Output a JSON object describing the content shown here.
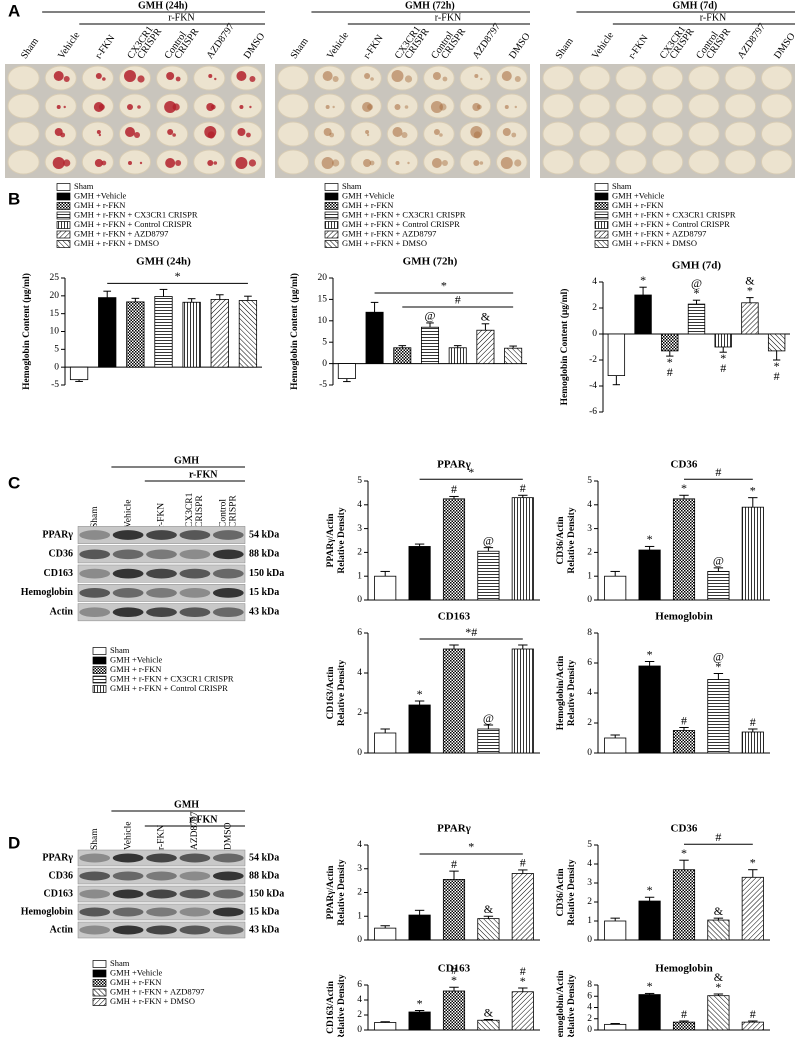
{
  "panel_labels": [
    "A",
    "B",
    "C",
    "D"
  ],
  "panel_a": [
    {
      "title": "GMH (24h)",
      "group": "r-FKN",
      "columns": [
        [
          "Sham"
        ],
        [
          "Vehicle"
        ],
        [
          "r-FKN"
        ],
        [
          "CX3CR1",
          "CRISPR"
        ],
        [
          "Control",
          "CRISPR"
        ],
        [
          "AZD8797"
        ],
        [
          "DMSO"
        ]
      ]
    },
    {
      "title": "GMH (72h)",
      "group": "r-FKN",
      "columns": [
        [
          "Sham"
        ],
        [
          "Vehicle"
        ],
        [
          "r-FKN"
        ],
        [
          "CX3CR1",
          "CRISPR"
        ],
        [
          "Control",
          "CRISPR"
        ],
        [
          "AZD8797"
        ],
        [
          "DMSO"
        ]
      ]
    },
    {
      "title": "GMH (7d)",
      "group": "r-FKN",
      "columns": [
        [
          "Sham"
        ],
        [
          "Vehicle"
        ],
        [
          "r-FKN"
        ],
        [
          "CX3CR1",
          "CRISPR"
        ],
        [
          "Control",
          "CRISPR"
        ],
        [
          "AZD8797"
        ],
        [
          "DMSO"
        ]
      ]
    }
  ],
  "blots": [
    {
      "header": "GMH",
      "group": "r-FKN",
      "columns": [
        [
          "Sham"
        ],
        [
          "Vehicle"
        ],
        [
          "r-FKN"
        ],
        [
          "CX3CR1",
          "CRISPR"
        ],
        [
          "Control",
          "CRISPR"
        ]
      ],
      "rows": [
        {
          "protein": "PPARγ",
          "size": "54 kDa"
        },
        {
          "protein": "CD36",
          "size": "88 kDa"
        },
        {
          "protein": "CD163",
          "size": "150 kDa"
        },
        {
          "protein": "Hemoglobin",
          "size": "15 kDa"
        },
        {
          "protein": "Actin",
          "size": "43 kDa"
        }
      ]
    },
    {
      "header": "GMH",
      "group": "r-FKN",
      "columns": [
        [
          "Sham"
        ],
        [
          "Vehicle"
        ],
        [
          "r-FKN"
        ],
        [
          "AZD8797"
        ],
        [
          "DMSO"
        ]
      ],
      "rows": [
        {
          "protein": "PPARγ",
          "size": "54 kDa"
        },
        {
          "protein": "CD36",
          "size": "88 kDa"
        },
        {
          "protein": "CD163",
          "size": "150 kDa"
        },
        {
          "protein": "Hemoglobin",
          "size": "15 kDa"
        },
        {
          "protein": "Actin",
          "size": "43 kDa"
        }
      ]
    }
  ],
  "legends": [
    {
      "names": [
        "Sham",
        "GMH +Vehicle",
        "GMH + r-FKN",
        "GMH + r-FKN + CX3CR1 CRISPR",
        "GMH + r-FKN + Control CRISPR"
      ],
      "patterns": [
        "none",
        "solid",
        "cross",
        "hlines",
        "vlines"
      ]
    },
    {
      "names": [
        "Sham",
        "GMH +Vehicle",
        "GMH + r-FKN",
        "GMH + r-FKN + AZD8797",
        "GMH + r-FKN + DMSO"
      ],
      "patterns": [
        "none",
        "solid",
        "cross",
        "antidiag",
        "diag"
      ]
    }
  ],
  "chart_data": [
    {
      "type": "bar",
      "title": "GMH (24h)",
      "ylabel": [
        "Hemoglobin Content (μg/ml)"
      ],
      "categories": [
        null,
        null,
        null,
        null,
        null,
        null,
        null
      ],
      "values": [
        -3.5,
        19.5,
        18.3,
        19.8,
        18.2,
        19,
        18.7
      ],
      "errors": [
        0.5,
        1.8,
        1,
        2,
        1,
        1.3,
        1.2
      ],
      "bar_labels": [
        null,
        null,
        null,
        null,
        null,
        null,
        null
      ],
      "brackets": [
        {
          "label": "*",
          "from": 1,
          "to": 6
        }
      ],
      "ylim": [
        -5,
        25
      ],
      "yticks": [
        -5,
        0,
        5,
        10,
        15,
        20,
        25
      ],
      "patterns": [
        "none",
        "solid",
        "cross",
        "hlines",
        "vlines",
        "diag",
        "antidiag"
      ],
      "legend": [
        "Sham",
        "GMH +Vehicle",
        "GMH + r-FKN",
        "GMH + r-FKN + CX3CR1 CRISPR",
        "GMH + r-FKN + Control CRISPR",
        "GMH + r-FKN + AZD8797",
        "GMH + r-FKN + DMSO"
      ]
    },
    {
      "type": "bar",
      "title": "GMH (72h)",
      "ylabel": [
        "Hemoglobin Content (μg/ml)"
      ],
      "categories": [
        null,
        null,
        null,
        null,
        null,
        null,
        null
      ],
      "values": [
        -3.5,
        12,
        3.7,
        8.5,
        3.7,
        7.8,
        3.6
      ],
      "errors": [
        0.7,
        2.3,
        0.5,
        1,
        0.5,
        1.5,
        0.5
      ],
      "bar_labels": [
        null,
        null,
        null,
        [
          "@"
        ],
        null,
        [
          "&"
        ],
        null
      ],
      "brackets": [
        {
          "label": "#",
          "from": 2,
          "to": 6
        },
        {
          "label": "*",
          "from": 1,
          "to": 6
        }
      ],
      "ylim": [
        -5,
        20
      ],
      "yticks": [
        -5,
        0,
        5,
        10,
        15,
        20
      ],
      "patterns": [
        "none",
        "solid",
        "cross",
        "hlines",
        "vlines",
        "diag",
        "antidiag"
      ],
      "legend": [
        "Sham",
        "GMH +Vehicle",
        "GMH + r-FKN",
        "GMH + r-FKN + CX3CR1 CRISPR",
        "GMH + r-FKN + Control CRISPR",
        "GMH + r-FKN + AZD8797",
        "GMH + r-FKN + DMSO"
      ]
    },
    {
      "type": "bar",
      "title": "GMH (7d)",
      "ylabel": [
        "Hemoglobin Content (μg/ml)"
      ],
      "categories": [
        null,
        null,
        null,
        null,
        null,
        null,
        null
      ],
      "values": [
        -3.2,
        3,
        -1.3,
        2.3,
        -1,
        2.4,
        -1.3
      ],
      "errors": [
        0.7,
        0.6,
        0.4,
        0.3,
        0.4,
        0.4,
        0.7
      ],
      "bar_labels": [
        null,
        [
          "*"
        ],
        [
          "*",
          "#"
        ],
        [
          "@",
          "*"
        ],
        [
          "*",
          "#"
        ],
        [
          "&",
          "*"
        ],
        [
          "*",
          "#"
        ]
      ],
      "brackets": [],
      "ylim": [
        -6,
        4
      ],
      "yticks": [
        -6,
        -4,
        -2,
        0,
        2,
        4
      ],
      "patterns": [
        "none",
        "solid",
        "cross",
        "hlines",
        "vlines",
        "diag",
        "antidiag"
      ],
      "legend": [
        "Sham",
        "GMH +Vehicle",
        "GMH + r-FKN",
        "GMH + r-FKN + CX3CR1 CRISPR",
        "GMH + r-FKN + Control CRISPR",
        "GMH + r-FKN + AZD8797",
        "GMH + r-FKN + DMSO"
      ]
    },
    {
      "type": "bar",
      "title": "PPARγ",
      "ylabel": [
        "PPARγ/Actin",
        "Relative Density"
      ],
      "categories": [
        null,
        null,
        null,
        null,
        null
      ],
      "values": [
        1,
        2.25,
        4.25,
        2.05,
        4.3
      ],
      "errors": [
        0.2,
        0.1,
        0.1,
        0.15,
        0.1
      ],
      "bar_labels": [
        null,
        null,
        [
          "#"
        ],
        [
          "@"
        ],
        [
          "#"
        ]
      ],
      "brackets": [
        {
          "label": "*",
          "from": 1,
          "to": 4
        }
      ],
      "ylim": [
        0,
        5
      ],
      "yticks": [
        0,
        1,
        2,
        3,
        4,
        5
      ],
      "patterns": [
        "none",
        "solid",
        "cross",
        "hlines",
        "vlines"
      ]
    },
    {
      "type": "bar",
      "title": "CD36",
      "ylabel": [
        "CD36/Actin",
        "Relative Density"
      ],
      "categories": [
        null,
        null,
        null,
        null,
        null
      ],
      "values": [
        1,
        2.1,
        4.25,
        1.2,
        3.9
      ],
      "errors": [
        0.2,
        0.15,
        0.15,
        0.15,
        0.4
      ],
      "bar_labels": [
        null,
        [
          "*"
        ],
        [
          "*"
        ],
        [
          "@"
        ],
        [
          "*"
        ]
      ],
      "brackets": [
        {
          "label": "#",
          "from": 2,
          "to": 4
        }
      ],
      "ylim": [
        0,
        5
      ],
      "yticks": [
        0,
        1,
        2,
        3,
        4,
        5
      ],
      "patterns": [
        "none",
        "solid",
        "cross",
        "hlines",
        "vlines"
      ]
    },
    {
      "type": "bar",
      "title": "CD163",
      "ylabel": [
        "CD163/Actin",
        "Relative Density"
      ],
      "categories": [
        null,
        null,
        null,
        null,
        null
      ],
      "values": [
        1,
        2.4,
        5.2,
        1.2,
        5.2
      ],
      "errors": [
        0.2,
        0.2,
        0.2,
        0.2,
        0.2
      ],
      "bar_labels": [
        null,
        [
          "*"
        ],
        null,
        [
          "@"
        ],
        null
      ],
      "brackets": [
        {
          "label": "*#",
          "from": 1,
          "to": 4
        }
      ],
      "ylim": [
        0,
        6
      ],
      "yticks": [
        0,
        2,
        4,
        6
      ],
      "patterns": [
        "none",
        "solid",
        "cross",
        "hlines",
        "vlines"
      ]
    },
    {
      "type": "bar",
      "title": "Hemoglobin",
      "ylabel": [
        "Hemoglobin/Actin",
        "Relative Density"
      ],
      "categories": [
        null,
        null,
        null,
        null,
        null
      ],
      "values": [
        1,
        5.8,
        1.5,
        4.9,
        1.4
      ],
      "errors": [
        0.2,
        0.3,
        0.2,
        0.4,
        0.2
      ],
      "bar_labels": [
        null,
        [
          "*"
        ],
        [
          "#"
        ],
        [
          "@",
          "*"
        ],
        [
          "#"
        ]
      ],
      "brackets": [],
      "ylim": [
        0,
        8
      ],
      "yticks": [
        0,
        2,
        4,
        6,
        8
      ],
      "patterns": [
        "none",
        "solid",
        "cross",
        "hlines",
        "vlines"
      ]
    },
    {
      "type": "bar",
      "title": "PPARγ",
      "ylabel": [
        "PPARγ/Actin",
        "Relative Density"
      ],
      "categories": [
        null,
        null,
        null,
        null,
        null
      ],
      "values": [
        0.5,
        1.05,
        2.55,
        0.9,
        2.8
      ],
      "errors": [
        0.1,
        0.2,
        0.35,
        0.1,
        0.15
      ],
      "bar_labels": [
        null,
        null,
        [
          "#"
        ],
        [
          "&"
        ],
        [
          "#"
        ]
      ],
      "brackets": [
        {
          "label": "*",
          "from": 1,
          "to": 4
        }
      ],
      "ylim": [
        0,
        4
      ],
      "yticks": [
        0,
        1,
        2,
        3,
        4
      ],
      "patterns": [
        "none",
        "solid",
        "cross",
        "antidiag",
        "diag"
      ]
    },
    {
      "type": "bar",
      "title": "CD36",
      "ylabel": [
        "CD36/Actin",
        "Relative Density"
      ],
      "categories": [
        null,
        null,
        null,
        null,
        null
      ],
      "values": [
        1,
        2.05,
        3.7,
        1.05,
        3.3
      ],
      "errors": [
        0.15,
        0.2,
        0.5,
        0.1,
        0.4
      ],
      "bar_labels": [
        null,
        [
          "*"
        ],
        [
          "*"
        ],
        [
          "&"
        ],
        [
          "*"
        ]
      ],
      "brackets": [
        {
          "label": "#",
          "from": 2,
          "to": 4
        }
      ],
      "ylim": [
        0,
        5
      ],
      "yticks": [
        0,
        1,
        2,
        3,
        4,
        5
      ],
      "patterns": [
        "none",
        "solid",
        "cross",
        "antidiag",
        "diag"
      ]
    },
    {
      "type": "bar",
      "title": "CD163",
      "ylabel": [
        "CD163/Actin",
        "Relative Density"
      ],
      "categories": [
        null,
        null,
        null,
        null,
        null
      ],
      "values": [
        1,
        2.4,
        5.2,
        1.3,
        5.1
      ],
      "errors": [
        0.1,
        0.2,
        0.5,
        0.1,
        0.5
      ],
      "bar_labels": [
        null,
        [
          "*"
        ],
        [
          "#",
          "*"
        ],
        [
          "&"
        ],
        [
          "#",
          "*"
        ]
      ],
      "brackets": [],
      "ylim": [
        0,
        6
      ],
      "yticks": [
        0,
        2,
        4,
        6
      ],
      "patterns": [
        "none",
        "solid",
        "cross",
        "antidiag",
        "diag"
      ]
    },
    {
      "type": "bar",
      "title": "Hemoglobin",
      "ylabel": [
        "Hemoglobin/Actin",
        "Relative Density"
      ],
      "categories": [
        null,
        null,
        null,
        null,
        null
      ],
      "values": [
        1,
        6.3,
        1.4,
        6.1,
        1.4
      ],
      "errors": [
        0.15,
        0.2,
        0.2,
        0.3,
        0.2
      ],
      "bar_labels": [
        null,
        [
          "*"
        ],
        [
          "#"
        ],
        [
          "&",
          "*"
        ],
        [
          "#"
        ]
      ],
      "brackets": [],
      "ylim": [
        0,
        8
      ],
      "yticks": [
        0,
        2,
        4,
        6,
        8
      ],
      "patterns": [
        "none",
        "solid",
        "cross",
        "antidiag",
        "diag"
      ]
    }
  ]
}
